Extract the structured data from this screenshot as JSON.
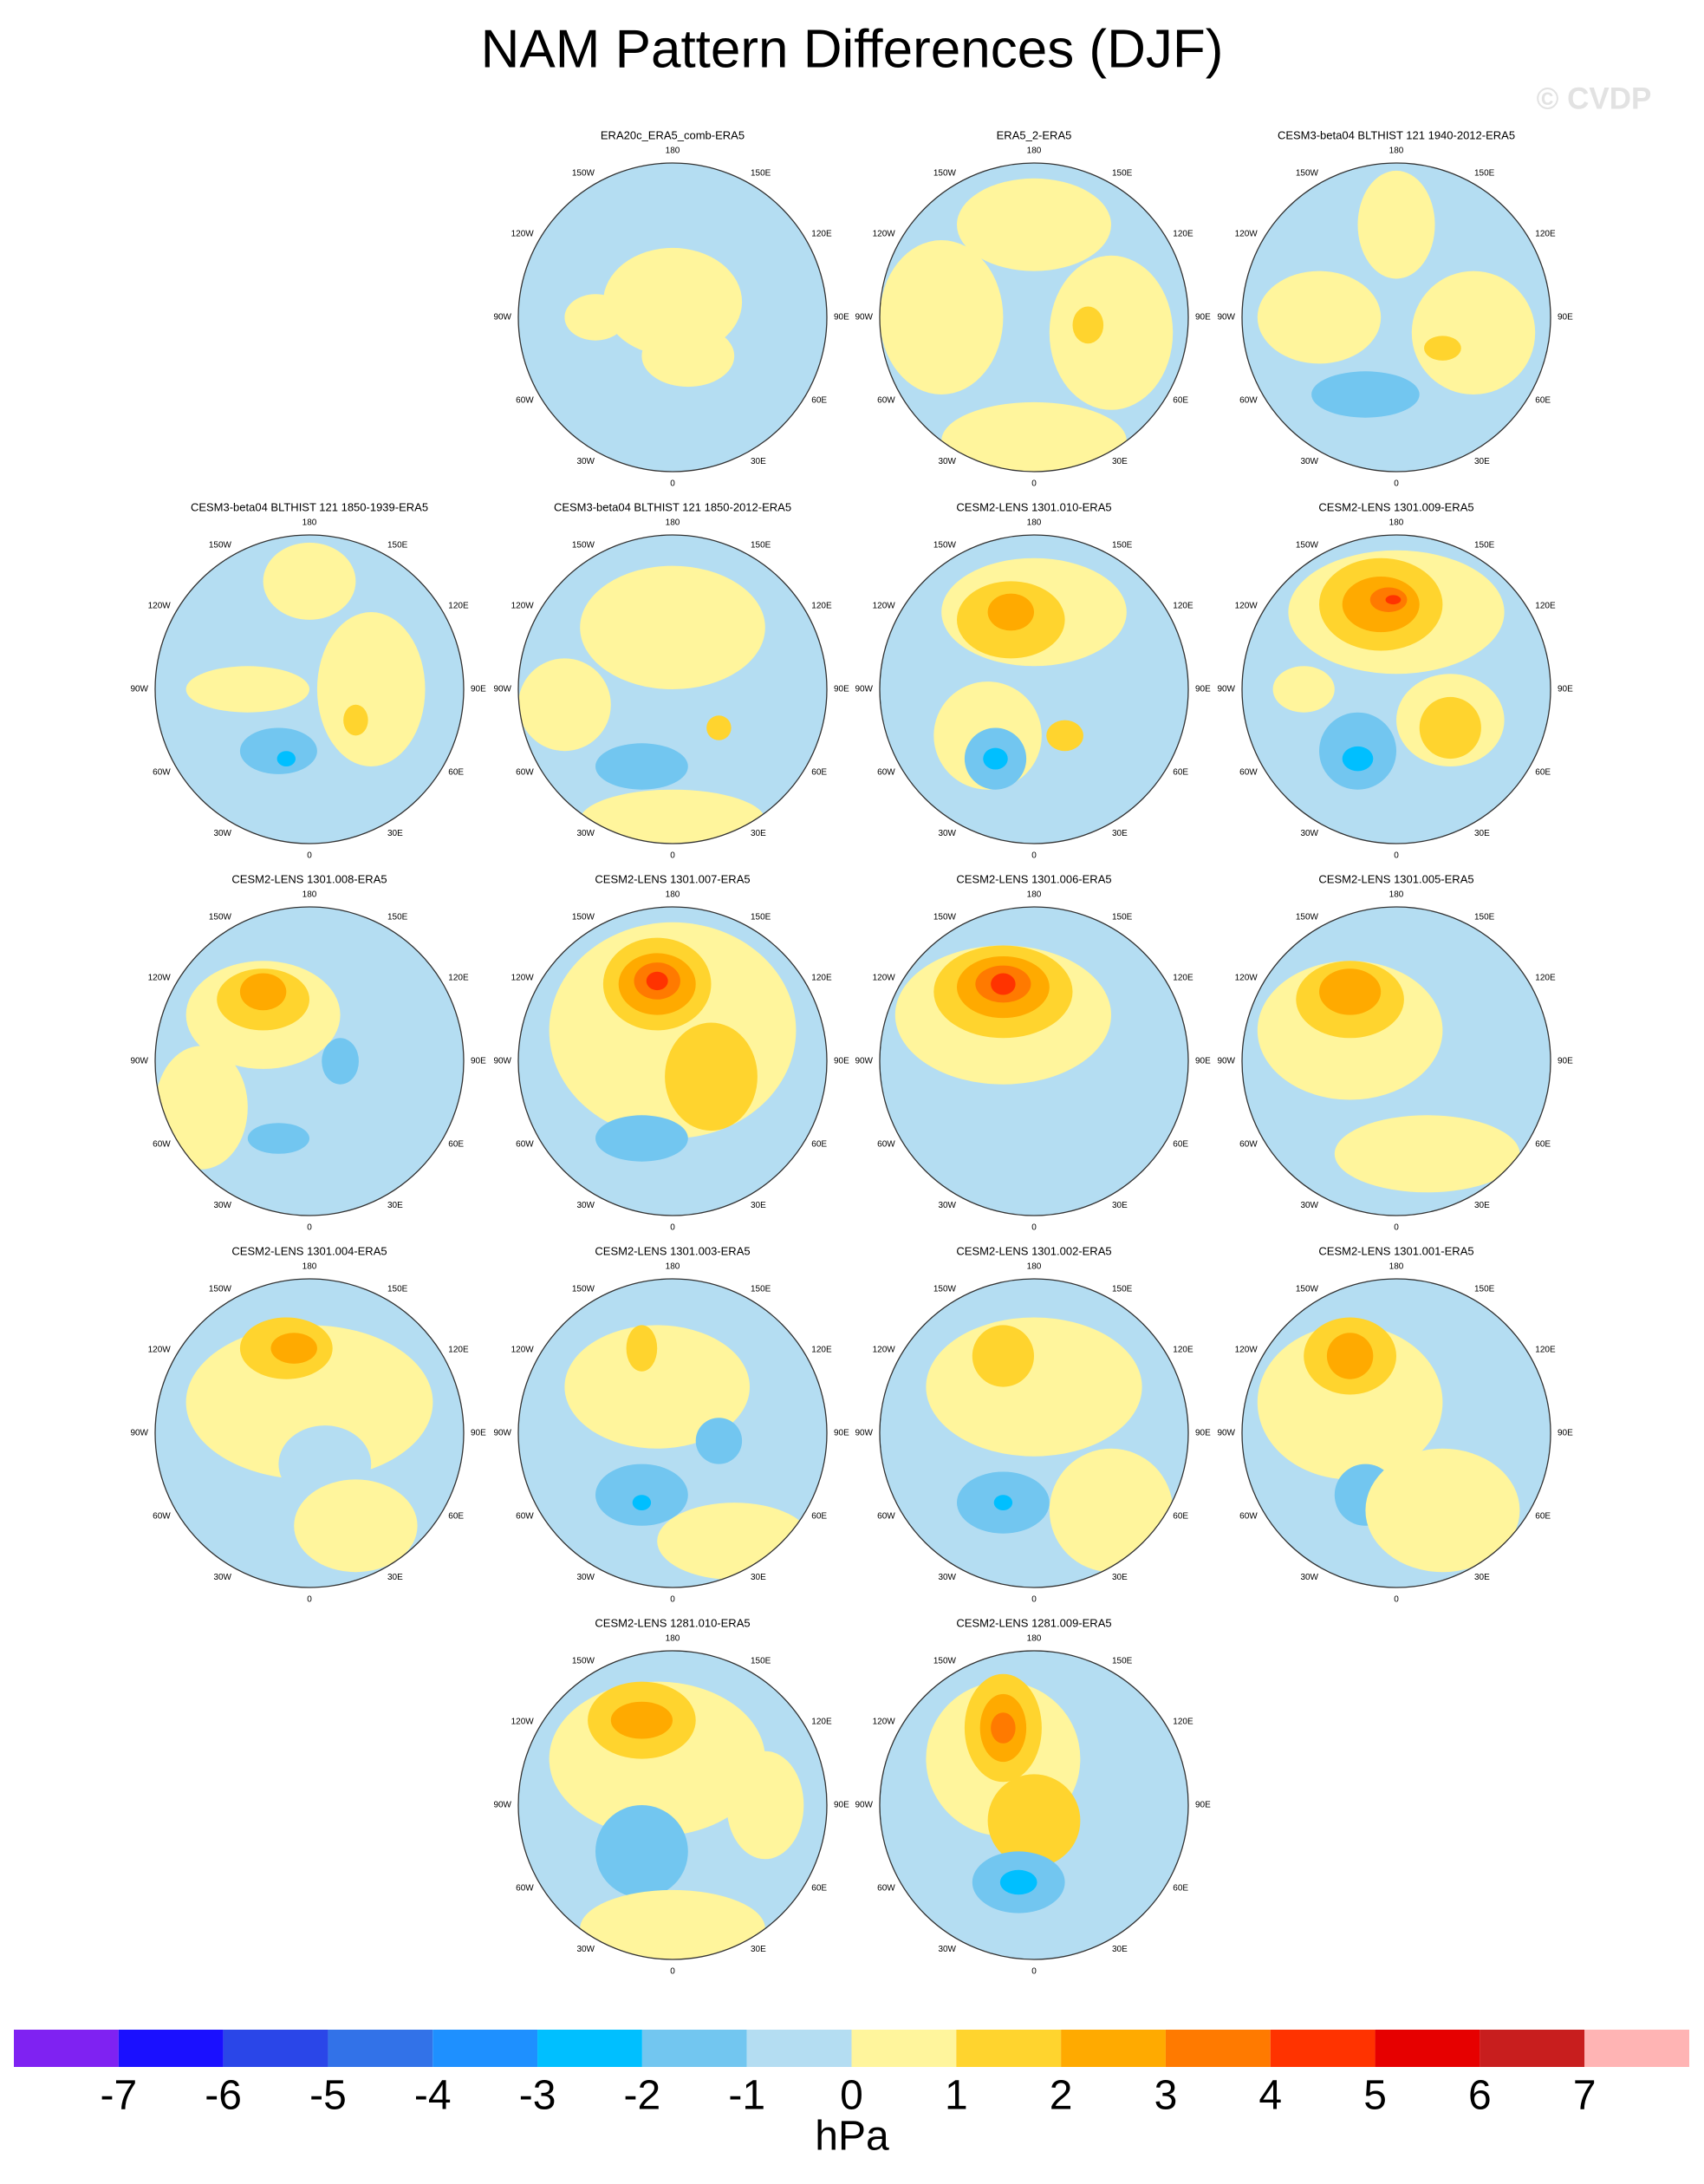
{
  "title": "NAM Pattern Differences (DJF)",
  "watermark": "© CVDP",
  "lon_labels": [
    "180",
    "150E",
    "120E",
    "90E",
    "60E",
    "30E",
    "0",
    "30W",
    "60W",
    "90W",
    "120W",
    "150W"
  ],
  "panels": [
    {
      "title": "ERA20c_ERA5_comb-ERA5"
    },
    {
      "title": "ERA5_2-ERA5"
    },
    {
      "title": "CESM3-beta04 BLTHIST 121 1940-2012-ERA5"
    },
    {
      "title": "CESM3-beta04 BLTHIST 121 1850-1939-ERA5"
    },
    {
      "title": "CESM3-beta04 BLTHIST 121 1850-2012-ERA5"
    },
    {
      "title": "CESM2-LENS 1301.010-ERA5"
    },
    {
      "title": "CESM2-LENS 1301.009-ERA5"
    },
    {
      "title": "CESM2-LENS 1301.008-ERA5"
    },
    {
      "title": "CESM2-LENS 1301.007-ERA5"
    },
    {
      "title": "CESM2-LENS 1301.006-ERA5"
    },
    {
      "title": "CESM2-LENS 1301.005-ERA5"
    },
    {
      "title": "CESM2-LENS 1301.004-ERA5"
    },
    {
      "title": "CESM2-LENS 1301.003-ERA5"
    },
    {
      "title": "CESM2-LENS 1301.002-ERA5"
    },
    {
      "title": "CESM2-LENS 1301.001-ERA5"
    },
    {
      "title": "CESM2-LENS 1281.010-ERA5"
    },
    {
      "title": "CESM2-LENS 1281.009-ERA5"
    }
  ],
  "colorbar": {
    "colors": [
      "#7f22f2",
      "#1a10ff",
      "#2a46e8",
      "#3272e8",
      "#1e90ff",
      "#00bfff",
      "#72c6f0",
      "#b4ddf2",
      "#fff59c",
      "#ffd42e",
      "#ffaa00",
      "#ff7a00",
      "#ff3300",
      "#e60000",
      "#c81e1e",
      "#ffb4b4"
    ],
    "ticks": [
      -7,
      -6,
      -5,
      -4,
      -3,
      -2,
      -1,
      0,
      1,
      2,
      3,
      4,
      5,
      6,
      7
    ],
    "label": "hPa"
  }
}
